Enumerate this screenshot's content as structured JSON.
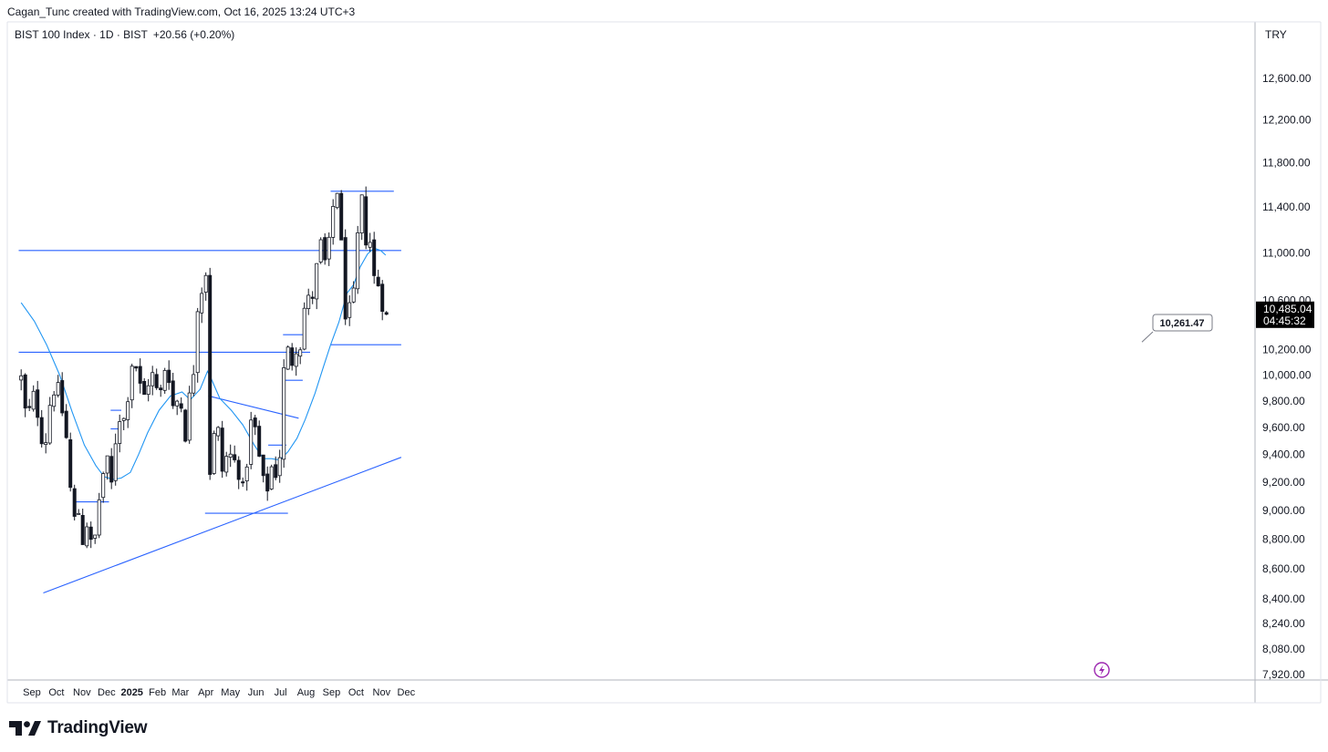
{
  "header": {
    "credit": "Cagan_Tunc created with TradingView.com, Oct 16, 2025 13:24 UTC+3"
  },
  "legend": {
    "symbol": "BIST 100 Index · 1D · BIST",
    "change": "+20.56 (+0.20%)"
  },
  "scale": {
    "currency": "TRY"
  },
  "price_tag": {
    "price": "10,485.04",
    "countdown": "04:45:32"
  },
  "callout": {
    "text": "10,261.47"
  },
  "footer": {
    "brand": "TradingView"
  },
  "colors": {
    "up_fill": "#ffffff",
    "down_fill": "#131722",
    "wick": "#131722",
    "drawing_line": "#2962ff",
    "ma_line": "#2196f3",
    "price_tag_bg": "#000000",
    "event_icon": "#9c27b0"
  },
  "icons": {
    "event": "lightning-icon"
  },
  "chart_data": {
    "type": "candlestick",
    "scale": "log",
    "x_tick_labels": [
      "Sep",
      "Oct",
      "Nov",
      "Dec",
      "2025",
      "Feb",
      "Mar",
      "Apr",
      "May",
      "Jun",
      "Jul",
      "Aug",
      "Sep",
      "Oct",
      "Nov",
      "Dec"
    ],
    "y_tick_labels": [
      "12,600.00",
      "12,200.00",
      "11,800.00",
      "11,400.00",
      "11,000.00",
      "10,600.00",
      "10,200.00",
      "10,000.00",
      "9,800.00",
      "9,600.00",
      "9,400.00",
      "9,200.00",
      "9,000.00",
      "8,800.00",
      "8,600.00",
      "8,400.00",
      "8,240.00",
      "8,080.00",
      "7,920.00"
    ],
    "y_ticks": [
      12600,
      12200,
      11800,
      11400,
      11000,
      10600,
      10200,
      10000,
      9800,
      9600,
      9400,
      9200,
      9000,
      8800,
      8600,
      8400,
      8240,
      8080,
      7920
    ],
    "ylim": [
      7890,
      13050
    ],
    "x_months": [
      {
        "label": "Sep",
        "date": "2024-09-01"
      },
      {
        "label": "Oct",
        "date": "2024-10-01"
      },
      {
        "label": "Nov",
        "date": "2024-11-01"
      },
      {
        "label": "Dec",
        "date": "2024-12-01"
      },
      {
        "label": "2025",
        "date": "2025-01-01"
      },
      {
        "label": "Feb",
        "date": "2025-02-01"
      },
      {
        "label": "Mar",
        "date": "2025-03-01"
      },
      {
        "label": "Apr",
        "date": "2025-04-01"
      },
      {
        "label": "May",
        "date": "2025-05-01"
      },
      {
        "label": "Jun",
        "date": "2025-06-01"
      },
      {
        "label": "Jul",
        "date": "2025-07-01"
      },
      {
        "label": "Aug",
        "date": "2025-08-01"
      },
      {
        "label": "Sep",
        "date": "2025-09-01"
      },
      {
        "label": "Oct",
        "date": "2025-10-01"
      },
      {
        "label": "Nov",
        "date": "2025-11-01"
      },
      {
        "label": "Dec",
        "date": "2025-12-01"
      }
    ],
    "last_price": 10485.04,
    "callout_price": 10261.47,
    "close_path": [
      {
        "date": "2024-08-19",
        "close": 9970
      },
      {
        "date": "2024-08-26",
        "close": 9620
      },
      {
        "date": "2024-09-02",
        "close": 9850
      },
      {
        "date": "2024-09-09",
        "close": 9700
      },
      {
        "date": "2024-09-16",
        "close": 9420
      },
      {
        "date": "2024-09-23",
        "close": 9780
      },
      {
        "date": "2024-09-30",
        "close": 9950
      },
      {
        "date": "2024-10-07",
        "close": 9760
      },
      {
        "date": "2024-10-14",
        "close": 9480
      },
      {
        "date": "2024-10-18",
        "close": 9150
      },
      {
        "date": "2024-10-23",
        "close": 8930
      },
      {
        "date": "2024-10-28",
        "close": 8990
      },
      {
        "date": "2024-11-01",
        "close": 8760
      },
      {
        "date": "2024-11-06",
        "close": 8950
      },
      {
        "date": "2024-11-11",
        "close": 8780
      },
      {
        "date": "2024-11-15",
        "close": 8690
      },
      {
        "date": "2024-11-20",
        "close": 9000
      },
      {
        "date": "2024-11-26",
        "close": 9250
      },
      {
        "date": "2024-12-02",
        "close": 9330
      },
      {
        "date": "2024-12-06",
        "close": 9100
      },
      {
        "date": "2024-12-10",
        "close": 9420
      },
      {
        "date": "2024-12-16",
        "close": 9700
      },
      {
        "date": "2024-12-23",
        "close": 9650
      },
      {
        "date": "2024-12-27",
        "close": 9860
      },
      {
        "date": "2025-01-02",
        "close": 10150
      },
      {
        "date": "2025-01-08",
        "close": 10030
      },
      {
        "date": "2025-01-14",
        "close": 9780
      },
      {
        "date": "2025-01-20",
        "close": 9950
      },
      {
        "date": "2025-01-27",
        "close": 10000
      },
      {
        "date": "2025-02-03",
        "close": 9780
      },
      {
        "date": "2025-02-10",
        "close": 10060
      },
      {
        "date": "2025-02-17",
        "close": 9980
      },
      {
        "date": "2025-02-21",
        "close": 9690
      },
      {
        "date": "2025-02-27",
        "close": 9860
      },
      {
        "date": "2025-03-03",
        "close": 9740
      },
      {
        "date": "2025-03-07",
        "close": 9560
      },
      {
        "date": "2025-03-12",
        "close": 9820
      },
      {
        "date": "2025-03-17",
        "close": 10050
      },
      {
        "date": "2025-03-21",
        "close": 10550
      },
      {
        "date": "2025-03-28",
        "close": 10730
      },
      {
        "date": "2025-04-02",
        "close": 10880
      },
      {
        "date": "2025-04-04",
        "close": 9780
      },
      {
        "date": "2025-04-07",
        "close": 9050
      },
      {
        "date": "2025-04-10",
        "close": 9520
      },
      {
        "date": "2025-04-16",
        "close": 9560
      },
      {
        "date": "2025-04-22",
        "close": 9230
      },
      {
        "date": "2025-04-28",
        "close": 9450
      },
      {
        "date": "2025-05-05",
        "close": 9310
      },
      {
        "date": "2025-05-09",
        "close": 9450
      },
      {
        "date": "2025-05-14",
        "close": 9050
      },
      {
        "date": "2025-05-19",
        "close": 9240
      },
      {
        "date": "2025-05-23",
        "close": 9480
      },
      {
        "date": "2025-05-28",
        "close": 9720
      },
      {
        "date": "2025-06-03",
        "close": 9440
      },
      {
        "date": "2025-06-09",
        "close": 9240
      },
      {
        "date": "2025-06-13",
        "close": 9030
      },
      {
        "date": "2025-06-18",
        "close": 9380
      },
      {
        "date": "2025-06-23",
        "close": 9200
      },
      {
        "date": "2025-06-27",
        "close": 9350
      },
      {
        "date": "2025-07-02",
        "close": 9440
      },
      {
        "date": "2025-07-04",
        "close": 9980
      },
      {
        "date": "2025-07-09",
        "close": 10210
      },
      {
        "date": "2025-07-14",
        "close": 10050
      },
      {
        "date": "2025-07-18",
        "close": 10320
      },
      {
        "date": "2025-07-23",
        "close": 10120
      },
      {
        "date": "2025-07-28",
        "close": 10450
      },
      {
        "date": "2025-08-01",
        "close": 10620
      },
      {
        "date": "2025-08-07",
        "close": 10560
      },
      {
        "date": "2025-08-13",
        "close": 10820
      },
      {
        "date": "2025-08-19",
        "close": 11060
      },
      {
        "date": "2025-08-25",
        "close": 10880
      },
      {
        "date": "2025-08-29",
        "close": 11050
      },
      {
        "date": "2025-09-03",
        "close": 11400
      },
      {
        "date": "2025-09-08",
        "close": 11560
      },
      {
        "date": "2025-09-11",
        "close": 11300
      },
      {
        "date": "2025-09-15",
        "close": 10800
      },
      {
        "date": "2025-09-19",
        "close": 10420
      },
      {
        "date": "2025-09-23",
        "close": 10500
      },
      {
        "date": "2025-09-26",
        "close": 10300
      },
      {
        "date": "2025-09-30",
        "close": 10950
      },
      {
        "date": "2025-10-03",
        "close": 11120
      },
      {
        "date": "2025-10-07",
        "close": 11500
      },
      {
        "date": "2025-10-10",
        "close": 11300
      },
      {
        "date": "2025-10-14",
        "close": 11080
      },
      {
        "date": "2025-10-17",
        "close": 11150
      },
      {
        "date": "2025-10-21",
        "close": 10950
      },
      {
        "date": "2025-10-24",
        "close": 10700
      },
      {
        "date": "2025-10-29",
        "close": 10750
      },
      {
        "date": "2025-11-03",
        "close": 10550
      },
      {
        "date": "2025-11-06",
        "close": 10300
      },
      {
        "date": "2025-11-10",
        "close": 10485
      }
    ],
    "moving_average": [
      {
        "date": "2024-08-19",
        "value": 10580
      },
      {
        "date": "2024-09-04",
        "value": 10430
      },
      {
        "date": "2024-09-19",
        "value": 10240
      },
      {
        "date": "2024-10-05",
        "value": 10000
      },
      {
        "date": "2024-10-20",
        "value": 9720
      },
      {
        "date": "2024-11-04",
        "value": 9470
      },
      {
        "date": "2024-11-18",
        "value": 9320
      },
      {
        "date": "2024-11-28",
        "value": 9240
      },
      {
        "date": "2024-12-09",
        "value": 9220
      },
      {
        "date": "2024-12-19",
        "value": 9230
      },
      {
        "date": "2024-12-30",
        "value": 9270
      },
      {
        "date": "2025-01-09",
        "value": 9400
      },
      {
        "date": "2025-01-20",
        "value": 9560
      },
      {
        "date": "2025-02-03",
        "value": 9730
      },
      {
        "date": "2025-02-17",
        "value": 9840
      },
      {
        "date": "2025-03-03",
        "value": 9870
      },
      {
        "date": "2025-03-13",
        "value": 9810
      },
      {
        "date": "2025-03-25",
        "value": 9890
      },
      {
        "date": "2025-04-03",
        "value": 10030
      },
      {
        "date": "2025-04-07",
        "value": 9980
      },
      {
        "date": "2025-04-18",
        "value": 9820
      },
      {
        "date": "2025-05-02",
        "value": 9730
      },
      {
        "date": "2025-05-16",
        "value": 9620
      },
      {
        "date": "2025-05-30",
        "value": 9470
      },
      {
        "date": "2025-06-10",
        "value": 9370
      },
      {
        "date": "2025-06-20",
        "value": 9370
      },
      {
        "date": "2025-06-30",
        "value": 9360
      },
      {
        "date": "2025-07-10",
        "value": 9420
      },
      {
        "date": "2025-07-21",
        "value": 9520
      },
      {
        "date": "2025-07-31",
        "value": 9660
      },
      {
        "date": "2025-08-12",
        "value": 9860
      },
      {
        "date": "2025-08-22",
        "value": 10060
      },
      {
        "date": "2025-08-31",
        "value": 10240
      },
      {
        "date": "2025-09-10",
        "value": 10420
      },
      {
        "date": "2025-09-20",
        "value": 10660
      },
      {
        "date": "2025-09-28",
        "value": 10730
      },
      {
        "date": "2025-10-06",
        "value": 10880
      },
      {
        "date": "2025-10-15",
        "value": 10990
      },
      {
        "date": "2025-10-23",
        "value": 11040
      },
      {
        "date": "2025-10-31",
        "value": 11020
      },
      {
        "date": "2025-11-06",
        "value": 10980
      }
    ],
    "drawings": {
      "horizontal_lines": [
        {
          "name": "resistance-line-11000",
          "y": 11020,
          "x1": "2024-08-16",
          "x2": "2025-11-25"
        },
        {
          "name": "resistance-line-10200",
          "y": 10180,
          "x1": "2024-08-16",
          "x2": "2025-08-06"
        },
        {
          "name": "top-range-line",
          "y": 11540,
          "x1": "2025-08-31",
          "x2": "2025-11-16"
        },
        {
          "name": "support-line-10250",
          "y": 10240,
          "x1": "2025-08-31",
          "x2": "2025-11-25"
        },
        {
          "name": "spring-low-line",
          "y": 8980,
          "x1": "2025-03-31",
          "x2": "2025-07-10"
        },
        {
          "name": "consolidation-line-july",
          "y": 9960,
          "x1": "2025-07-04",
          "x2": "2025-07-28"
        },
        {
          "name": "box-line-july",
          "y": 10320,
          "x1": "2025-07-04",
          "x2": "2025-07-28"
        },
        {
          "name": "box-line-june",
          "y": 9470,
          "x1": "2025-06-16",
          "x2": "2025-07-08"
        },
        {
          "name": "nov-box-line",
          "y": 9060,
          "x1": "2024-10-23",
          "x2": "2024-12-04"
        },
        {
          "name": "dec-box-line-top",
          "y": 9730,
          "x1": "2024-12-06",
          "x2": "2024-12-19"
        },
        {
          "name": "dec-box-line-bottom",
          "y": 9590,
          "x1": "2024-12-06",
          "x2": "2024-12-19"
        }
      ],
      "trend_lines": [
        {
          "name": "rising-trendline",
          "x1": "2024-09-15",
          "y1": 8440,
          "x2": "2025-11-25",
          "y2": 9380
        },
        {
          "name": "falling-trendline",
          "x1": "2025-04-04",
          "y1": 9840,
          "x2": "2025-07-23",
          "y2": 9670
        }
      ]
    }
  }
}
